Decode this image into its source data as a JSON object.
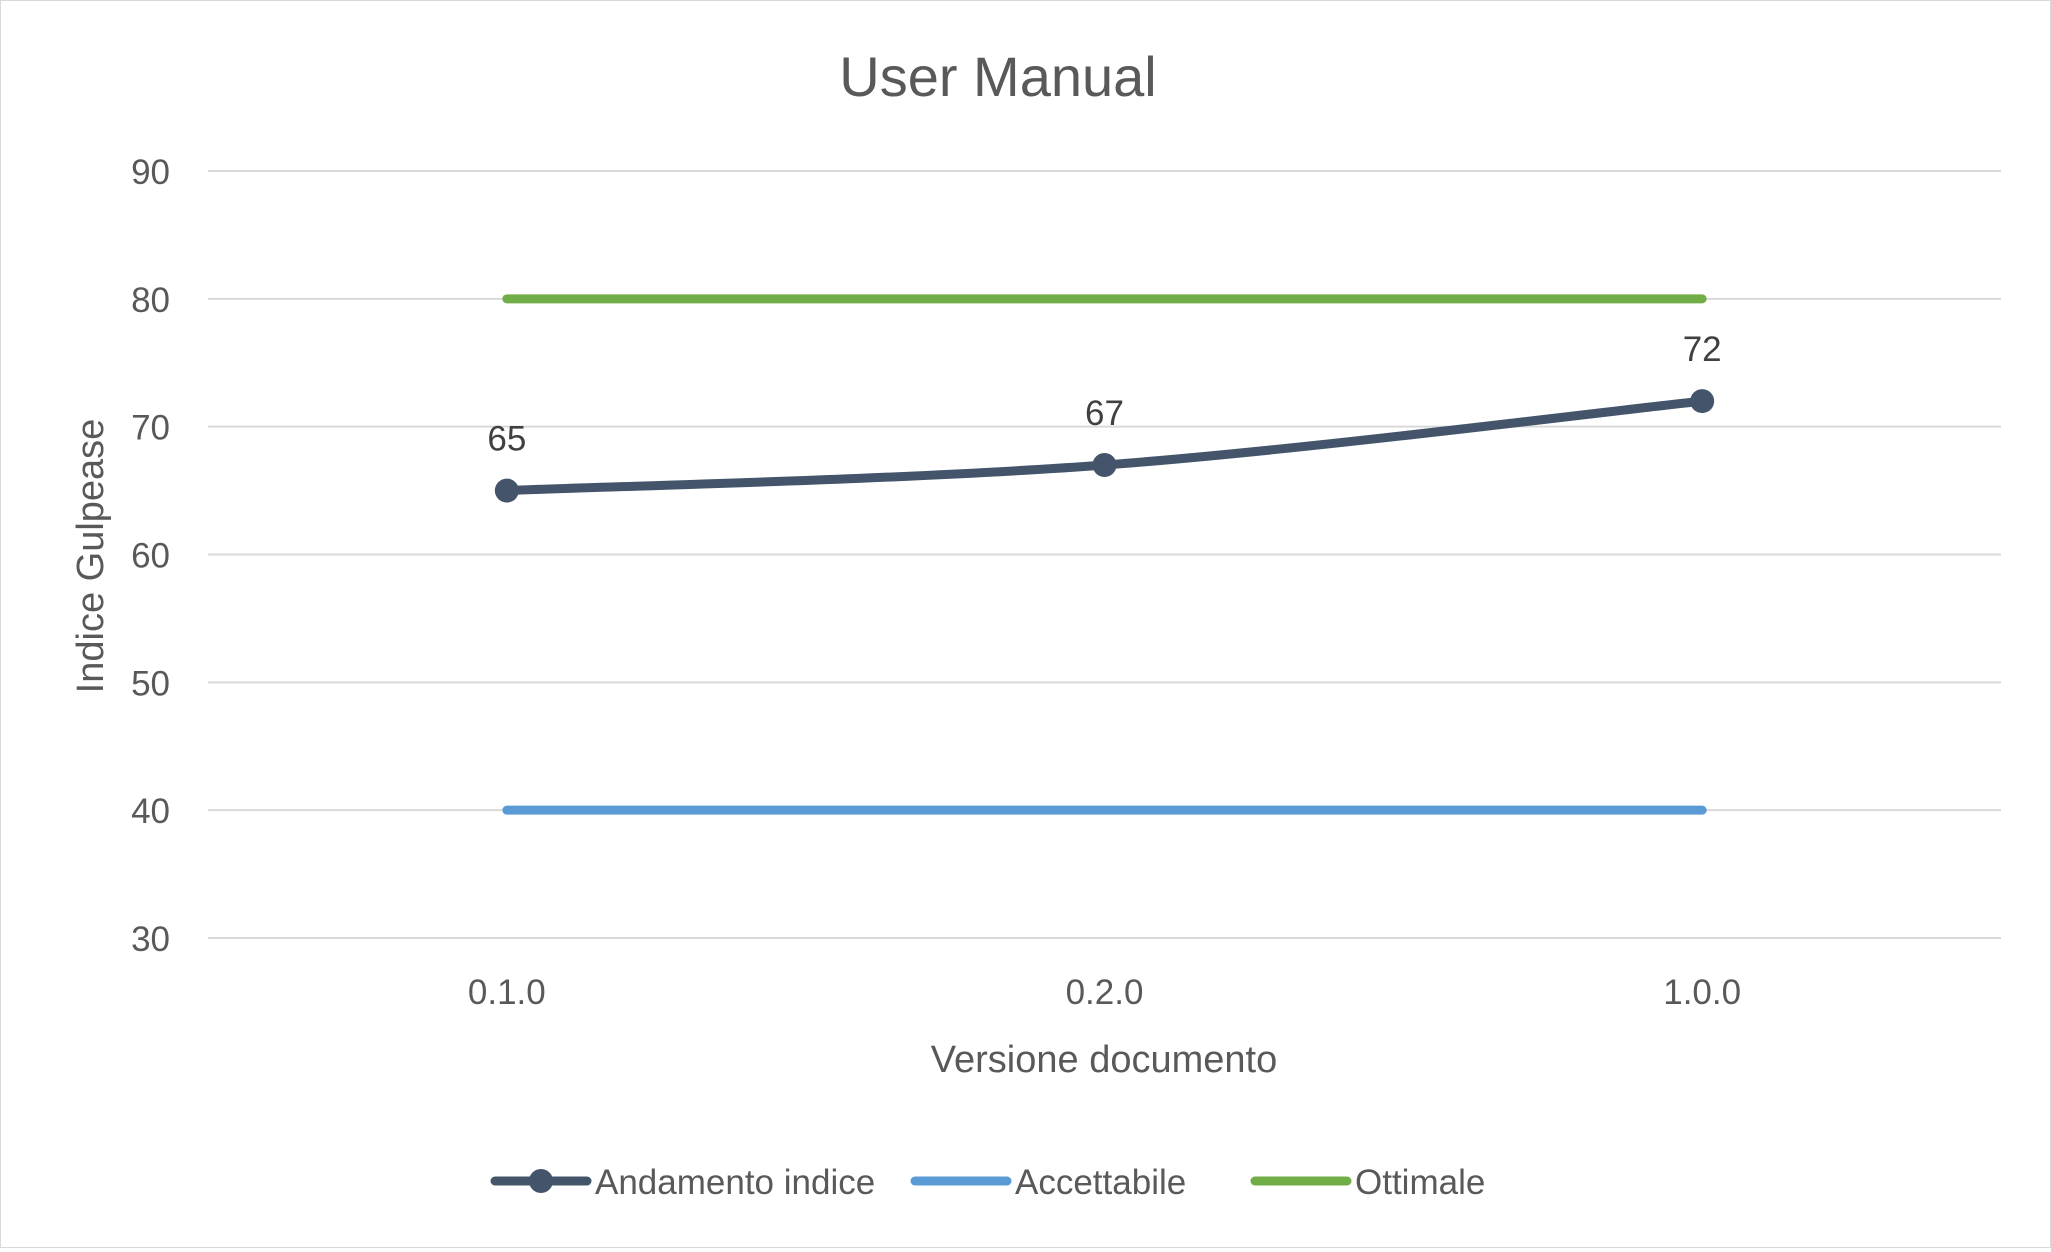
{
  "chart_data": {
    "type": "line",
    "title": "User Manual",
    "xlabel": "Versione documento",
    "ylabel": "Indice Gulpease",
    "categories": [
      "0.1.0",
      "0.2.0",
      "1.0.0"
    ],
    "ylim": [
      30,
      90
    ],
    "yticks": [
      30,
      40,
      50,
      60,
      70,
      80,
      90
    ],
    "grid": true,
    "legend_position": "bottom",
    "series": [
      {
        "name": "Andamento indice",
        "values": [
          65,
          67,
          72
        ],
        "color": "#44546a",
        "markers": true,
        "data_labels": true
      },
      {
        "name": "Accettabile",
        "values": [
          40,
          40,
          40
        ],
        "color": "#5b9bd5",
        "markers": false,
        "data_labels": false
      },
      {
        "name": "Ottimale",
        "values": [
          80,
          80,
          80
        ],
        "color": "#70ad47",
        "markers": false,
        "data_labels": false
      }
    ]
  }
}
